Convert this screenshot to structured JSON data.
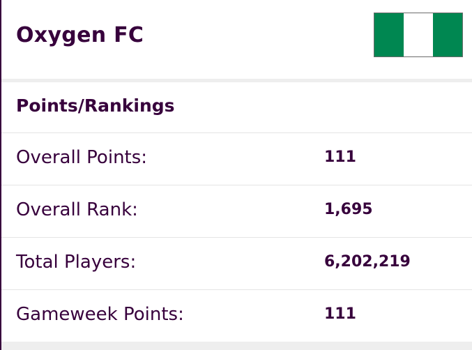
{
  "team": {
    "name": "Oxygen FC",
    "flag": {
      "icon": "nigeria-flag-icon",
      "colors": [
        "#008751",
        "#ffffff",
        "#008751"
      ]
    }
  },
  "section": {
    "title": "Points/Rankings"
  },
  "stats": [
    {
      "label": "Overall Points:",
      "value": "111"
    },
    {
      "label": "Overall Rank:",
      "value": "1,695"
    },
    {
      "label": "Total Players:",
      "value": "6,202,219"
    },
    {
      "label": "Gameweek Points:",
      "value": "111"
    }
  ],
  "theme": {
    "text": "#37003c",
    "divider": "#e4e4e4",
    "band": "#eeeeee"
  }
}
